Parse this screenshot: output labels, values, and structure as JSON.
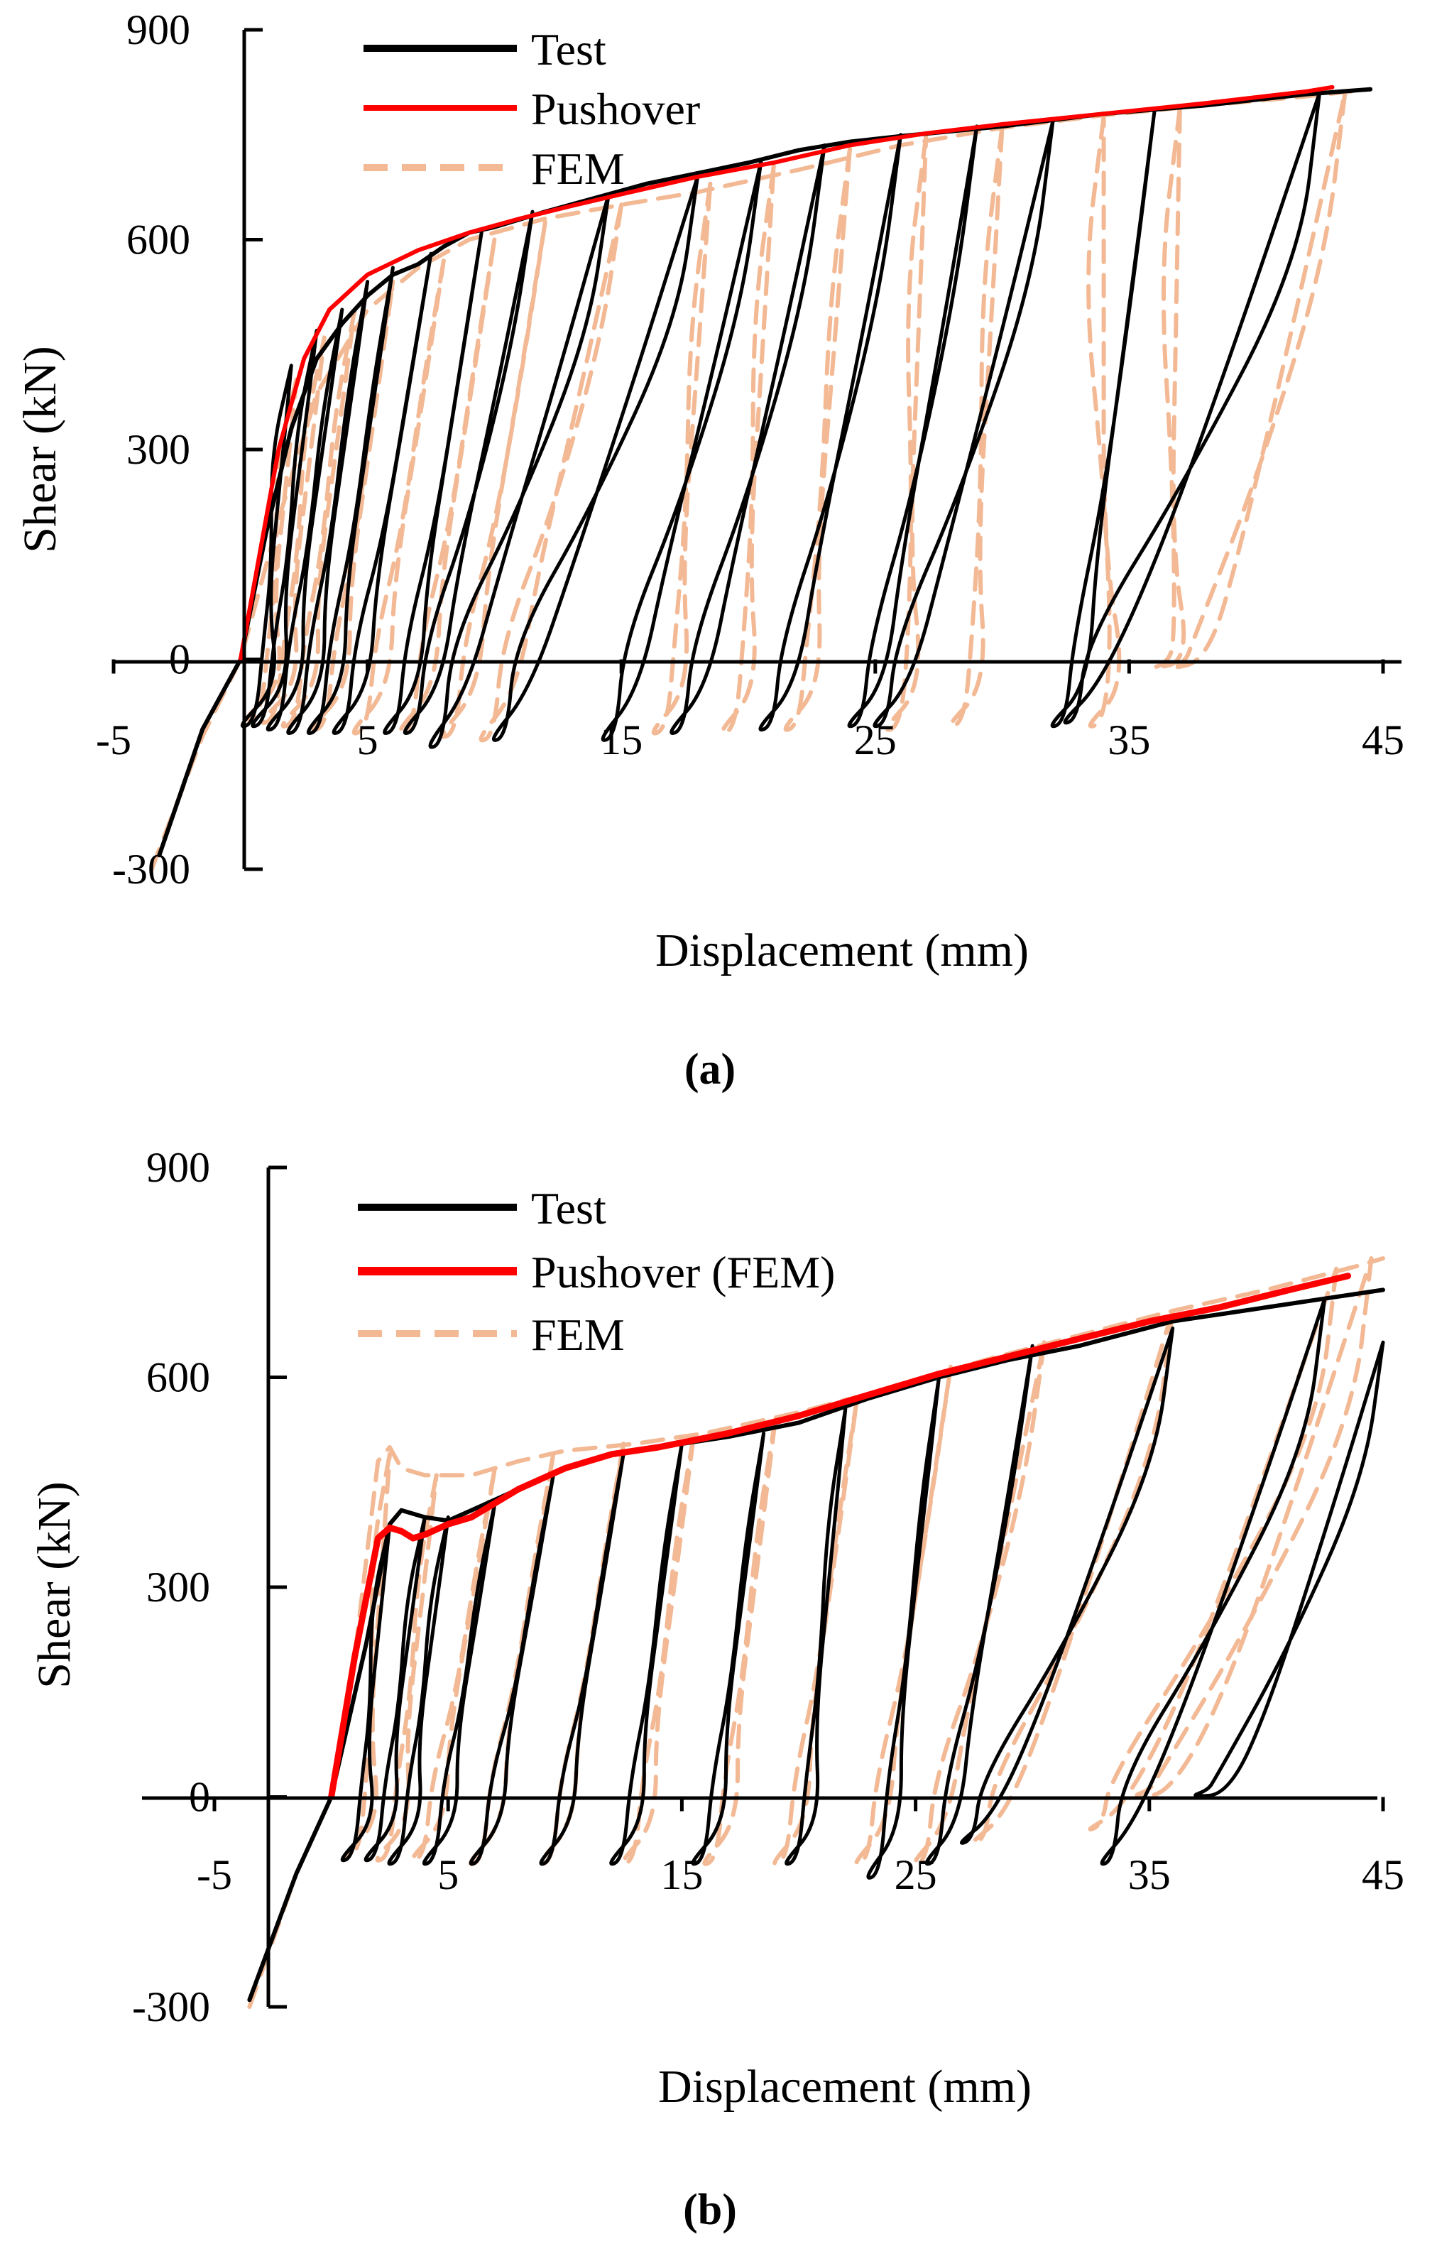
{
  "figure_colors": {
    "test": "#000000",
    "pushover": "#ff0000",
    "fem": "#f2b994",
    "axis": "#000000",
    "background": "#ffffff"
  },
  "chart_data": [
    {
      "panel_label": "(a)",
      "type": "line",
      "title": "",
      "xlabel": "Displacement (mm)",
      "ylabel": "Shear (kN)",
      "xlim": [
        -5,
        45
      ],
      "ylim": [
        -300,
        900
      ],
      "grid": false,
      "legend_position": "top-left",
      "xticks": [
        -5,
        5,
        15,
        25,
        35,
        45
      ],
      "yticks": [
        -300,
        0,
        300,
        600,
        900
      ],
      "xtick_labels": [
        "-5",
        "5",
        "15",
        "25",
        "35",
        "45"
      ],
      "ytick_labels": [
        "-300",
        "0",
        "300",
        "600",
        "900"
      ],
      "legend": [
        "Test",
        "Pushover",
        "FEM"
      ],
      "series": [
        {
          "name": "Test",
          "style": "solid",
          "color_key": "test",
          "pushover_curve": [
            [
              -3.2,
              -280
            ],
            [
              -1.5,
              -100
            ],
            [
              0,
              0
            ],
            [
              1,
              180
            ],
            [
              2,
              330
            ],
            [
              3,
              430
            ],
            [
              4,
              480
            ],
            [
              5,
              520
            ],
            [
              6,
              550
            ],
            [
              7,
              565
            ],
            [
              8,
              590
            ],
            [
              9,
              610
            ],
            [
              10,
              618
            ],
            [
              12,
              640
            ],
            [
              14,
              660
            ],
            [
              16,
              680
            ],
            [
              18,
              695
            ],
            [
              20,
              710
            ],
            [
              22,
              728
            ],
            [
              24,
              740
            ],
            [
              26,
              748
            ],
            [
              28,
              755
            ],
            [
              30,
              762
            ],
            [
              34,
              780
            ],
            [
              38,
              792
            ],
            [
              42,
              808
            ],
            [
              44.5,
              815
            ]
          ],
          "cycles": [
            [
              2,
              420,
              0.6,
              -90
            ],
            [
              3,
              470,
              1.0,
              -90
            ],
            [
              4,
              500,
              1.6,
              -95
            ],
            [
              5,
              540,
              2.4,
              -100
            ],
            [
              6,
              560,
              3.2,
              -100
            ],
            [
              7.5,
              580,
              4.2,
              -100
            ],
            [
              9.5,
              612,
              6.2,
              -100
            ],
            [
              11.5,
              640,
              7.0,
              -100
            ],
            [
              14.5,
              665,
              8.0,
              -120
            ],
            [
              18,
              690,
              10.5,
              -110
            ],
            [
              20.5,
              712,
              14.8,
              -110
            ],
            [
              23,
              735,
              17.5,
              -100
            ],
            [
              26,
              750,
              21.0,
              -95
            ],
            [
              29,
              762,
              24.5,
              -90
            ],
            [
              32,
              770,
              25.5,
              -90
            ],
            [
              36,
              785,
              32.5,
              -90
            ],
            [
              42.5,
              810,
              33.0,
              -85
            ]
          ]
        },
        {
          "name": "Pushover",
          "style": "solid",
          "color_key": "pushover",
          "curve": [
            [
              0,
              0
            ],
            [
              1.5,
              300
            ],
            [
              2.5,
              430
            ],
            [
              3.5,
              500
            ],
            [
              5,
              550
            ],
            [
              7,
              585
            ],
            [
              9,
              610
            ],
            [
              11,
              630
            ],
            [
              13,
              648
            ],
            [
              15,
              665
            ],
            [
              18,
              690
            ],
            [
              21,
              710
            ],
            [
              24,
              735
            ],
            [
              27,
              752
            ],
            [
              30,
              765
            ],
            [
              34,
              780
            ],
            [
              38,
              795
            ],
            [
              42,
              812
            ],
            [
              43,
              818
            ]
          ]
        },
        {
          "name": "FEM",
          "style": "dashed",
          "color_key": "fem",
          "pushover_curve": [
            [
              -3.5,
              -300
            ],
            [
              -1.5,
              -110
            ],
            [
              0,
              0
            ],
            [
              1.5,
              200
            ],
            [
              3,
              380
            ],
            [
              5,
              500
            ],
            [
              7,
              560
            ],
            [
              9,
              600
            ],
            [
              12,
              630
            ],
            [
              15,
              650
            ],
            [
              18,
              668
            ],
            [
              22,
              700
            ],
            [
              26,
              735
            ],
            [
              30,
              760
            ],
            [
              34,
              778
            ],
            [
              38,
              792
            ],
            [
              42,
              805
            ],
            [
              44.5,
              815
            ]
          ],
          "cycles": [
            [
              2.2,
              400,
              0.8,
              -80
            ],
            [
              3.3,
              460,
              1.4,
              -85
            ],
            [
              4.5,
              500,
              2.2,
              -90
            ],
            [
              6,
              540,
              3.4,
              -95
            ],
            [
              8,
              570,
              5.0,
              -100
            ],
            [
              10,
              600,
              6.8,
              -100
            ],
            [
              12,
              625,
              8.5,
              -105
            ],
            [
              15,
              650,
              10.0,
              -110
            ],
            [
              18.5,
              680,
              16.8,
              -100
            ],
            [
              21,
              705,
              19.5,
              -100
            ],
            [
              24,
              730,
              22.0,
              -95
            ],
            [
              27,
              748,
              26.0,
              -95
            ],
            [
              30,
              762,
              28.5,
              -90
            ],
            [
              34,
              776,
              34.0,
              -90
            ],
            [
              37,
              788,
              36.5,
              -5
            ],
            [
              43.5,
              810,
              37.2,
              -5
            ]
          ]
        }
      ]
    },
    {
      "panel_label": "(b)",
      "type": "line",
      "title": "",
      "xlabel": "Displacement (mm)",
      "ylabel": "Shear (kN)",
      "xlim": [
        -5,
        45
      ],
      "ylim": [
        -300,
        900
      ],
      "grid": false,
      "legend_position": "top-left",
      "xticks": [
        -5,
        5,
        15,
        25,
        35,
        45
      ],
      "yticks": [
        -300,
        0,
        300,
        600,
        900
      ],
      "xtick_labels": [
        "-5",
        "5",
        "15",
        "25",
        "35",
        "45"
      ],
      "ytick_labels": [
        "-300",
        "0",
        "300",
        "600",
        "900"
      ],
      "legend": [
        "Test",
        "Pushover (FEM)",
        "FEM"
      ],
      "series": [
        {
          "name": "Test",
          "style": "solid",
          "color_key": "test",
          "pushover_curve": [
            [
              -3.5,
              -290
            ],
            [
              -1.5,
              -110
            ],
            [
              0,
              0
            ],
            [
              1.5,
              220
            ],
            [
              2.5,
              390
            ],
            [
              3,
              410
            ],
            [
              4,
              400
            ],
            [
              5,
              395
            ],
            [
              6,
              410
            ],
            [
              8,
              440
            ],
            [
              10,
              470
            ],
            [
              12,
              490
            ],
            [
              14,
              500
            ],
            [
              17,
              515
            ],
            [
              20,
              535
            ],
            [
              23,
              570
            ],
            [
              26,
              600
            ],
            [
              29,
              625
            ],
            [
              32,
              645
            ],
            [
              36,
              680
            ],
            [
              40,
              700
            ],
            [
              43,
              715
            ],
            [
              45,
              725
            ]
          ],
          "cycles": [
            [
              2.5,
              390,
              1.0,
              -85
            ],
            [
              4,
              400,
              2.0,
              -85
            ],
            [
              5,
              400,
              3.0,
              -90
            ],
            [
              7,
              420,
              4.5,
              -90
            ],
            [
              9.5,
              460,
              6.5,
              -90
            ],
            [
              12.5,
              490,
              9.5,
              -90
            ],
            [
              15,
              505,
              12.5,
              -90
            ],
            [
              18.5,
              520,
              16.0,
              -90
            ],
            [
              22,
              555,
              20.0,
              -90
            ],
            [
              26,
              600,
              23.5,
              -110
            ],
            [
              30,
              645,
              26.0,
              -90
            ],
            [
              36,
              670,
              27.5,
              -60
            ],
            [
              42.5,
              712,
              33.5,
              -90
            ],
            [
              45,
              650,
              37.5,
              10
            ]
          ]
        },
        {
          "name": "Pushover (FEM)",
          "style": "solid",
          "color_key": "pushover",
          "curve": [
            [
              0,
              0
            ],
            [
              1,
              200
            ],
            [
              2,
              370
            ],
            [
              2.5,
              385
            ],
            [
              3,
              380
            ],
            [
              3.5,
              370
            ],
            [
              4,
              375
            ],
            [
              5,
              390
            ],
            [
              6,
              400
            ],
            [
              8,
              440
            ],
            [
              10,
              470
            ],
            [
              12,
              490
            ],
            [
              14,
              500
            ],
            [
              17,
              520
            ],
            [
              20,
              545
            ],
            [
              23,
              575
            ],
            [
              26,
              605
            ],
            [
              29,
              630
            ],
            [
              32,
              655
            ],
            [
              35,
              680
            ],
            [
              38,
              700
            ],
            [
              41,
              725
            ],
            [
              43.5,
              745
            ]
          ],
          "cycles": []
        },
        {
          "name": "FEM",
          "style": "dashed",
          "color_key": "fem",
          "pushover_curve": [
            [
              -3.5,
              -300
            ],
            [
              -1.5,
              -110
            ],
            [
              0,
              0
            ],
            [
              1,
              200
            ],
            [
              2,
              480
            ],
            [
              2.5,
              500
            ],
            [
              3,
              470
            ],
            [
              4,
              460
            ],
            [
              6,
              460
            ],
            [
              8,
              480
            ],
            [
              10,
              495
            ],
            [
              13,
              505
            ],
            [
              16,
              520
            ],
            [
              20,
              550
            ],
            [
              24,
              585
            ],
            [
              28,
              625
            ],
            [
              32,
              660
            ],
            [
              36,
              695
            ],
            [
              40,
              725
            ],
            [
              44,
              760
            ],
            [
              45,
              770
            ]
          ],
          "cycles": [
            [
              2.5,
              490,
              1.2,
              -80
            ],
            [
              4.5,
              460,
              2.5,
              -85
            ],
            [
              7,
              470,
              4.0,
              -85
            ],
            [
              9.5,
              490,
              6.5,
              -90
            ],
            [
              12.5,
              505,
              9.5,
              -90
            ],
            [
              15.5,
              515,
              13.0,
              -90
            ],
            [
              19,
              540,
              16.5,
              -90
            ],
            [
              22.5,
              570,
              19.5,
              -90
            ],
            [
              26.5,
              615,
              23.0,
              -90
            ],
            [
              30.5,
              650,
              25.5,
              -90
            ],
            [
              36,
              695,
              28.0,
              -60
            ],
            [
              43,
              755,
              33.0,
              -40
            ],
            [
              44.5,
              770,
              35.0,
              10
            ]
          ]
        }
      ]
    }
  ]
}
